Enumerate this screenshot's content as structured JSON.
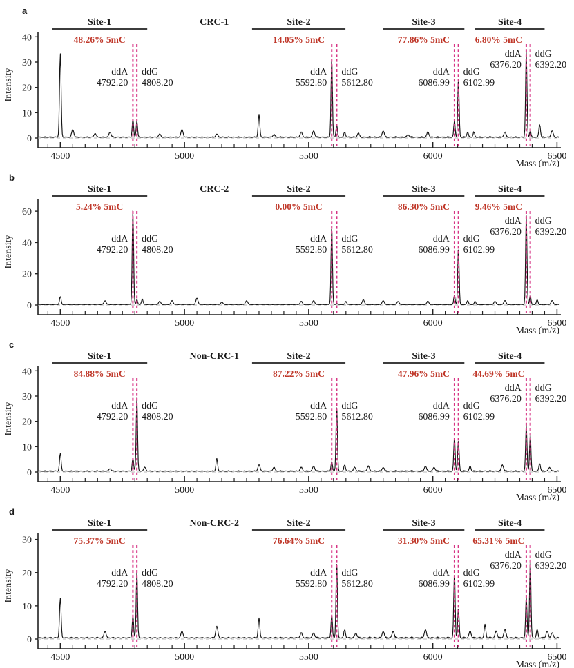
{
  "figure": {
    "xlabel": "Mass (m/z)",
    "ylabel": "Intensity",
    "colors": {
      "background": "#ffffff",
      "trace": "#141414",
      "axis": "#222222",
      "site_bar": "#3c3c3c",
      "percent_red": "#c0392b",
      "marker_pink": "#d63384",
      "baseline_dash": "#b9b9b9",
      "text": "#1a1a1a"
    }
  },
  "chart_data": [
    {
      "type": "line",
      "panel_letter": "a",
      "title": "CRC-1",
      "title_mass": 5120,
      "xlabel": "Mass (m/z)",
      "ylabel": "Intensity",
      "xlim": [
        4410,
        6510
      ],
      "xticks": [
        4500,
        5000,
        5500,
        6000,
        6500
      ],
      "minor_tick_step": 50,
      "yticks": [
        0,
        10,
        20,
        30,
        40
      ],
      "ymax": 42,
      "sites": [
        {
          "name": "Site-1",
          "percent": "48.26% 5mC",
          "bar": [
            4466,
            4850
          ],
          "pct_mass": 4658,
          "label_row": "low",
          "ddA": {
            "label": "ddA",
            "mass_label": "4792.20",
            "mass": 4792.2,
            "height": 7.0
          },
          "ddG": {
            "label": "ddG",
            "mass_label": "4808.20",
            "mass": 4808.2,
            "height": 6.5
          }
        },
        {
          "name": "Site-2",
          "percent": "14.05% 5mC",
          "bar": [
            5272,
            5648
          ],
          "pct_mass": 5460,
          "label_row": "low",
          "ddA": {
            "label": "ddA",
            "mass_label": "5592.80",
            "mass": 5592.8,
            "height": 31.0
          },
          "ddG": {
            "label": "ddG",
            "mass_label": "5612.80",
            "mass": 5612.8,
            "height": 5.0
          }
        },
        {
          "name": "Site-3",
          "percent": "77.86% 5mC",
          "bar": [
            5800,
            6127
          ],
          "pct_mass": 5963,
          "label_row": "low",
          "ddA": {
            "label": "ddA",
            "mass_label": "6086.99",
            "mass": 6086.99,
            "height": 6.5
          },
          "ddG": {
            "label": "ddG",
            "mass_label": "6102.99",
            "mass": 6102.99,
            "height": 23.0
          }
        },
        {
          "name": "Site-4",
          "percent": "6.80% 5mC",
          "bar": [
            6170,
            6450
          ],
          "pct_mass": 6265,
          "label_row": "high",
          "ddA": {
            "label": "ddA",
            "mass_label": "6376.20",
            "mass": 6376.2,
            "height": 34.0
          },
          "ddG": {
            "label": "ddG",
            "mass_label": "6392.20",
            "mass": 6392.2,
            "height": 2.5
          }
        }
      ],
      "noise_peaks": [
        [
          4500,
          33,
          4.5
        ],
        [
          4550,
          3
        ],
        [
          4640,
          1.5
        ],
        [
          4700,
          2
        ],
        [
          4900,
          1.2
        ],
        [
          4990,
          3
        ],
        [
          5130,
          1.2
        ],
        [
          5300,
          9,
          4.5
        ],
        [
          5360,
          1
        ],
        [
          5470,
          2
        ],
        [
          5520,
          2.5
        ],
        [
          5645,
          2,
          4.5
        ],
        [
          5700,
          1.5
        ],
        [
          5800,
          2.5
        ],
        [
          5900,
          1
        ],
        [
          5980,
          2
        ],
        [
          6140,
          2,
          4.5
        ],
        [
          6165,
          2,
          4.5
        ],
        [
          6290,
          2
        ],
        [
          6430,
          5,
          4.5
        ],
        [
          6480,
          2.5
        ]
      ]
    },
    {
      "type": "line",
      "panel_letter": "b",
      "title": "CRC-2",
      "title_mass": 5120,
      "xlabel": "Mass (m/z)",
      "ylabel": "Intensity",
      "xlim": [
        4410,
        6510
      ],
      "xticks": [
        4500,
        5000,
        5500,
        6000,
        6500
      ],
      "minor_tick_step": 50,
      "yticks": [
        0,
        20,
        40,
        60
      ],
      "ymax": 68,
      "sites": [
        {
          "name": "Site-1",
          "percent": "5.24% 5mC",
          "bar": [
            4466,
            4850
          ],
          "pct_mass": 4658,
          "label_row": "low",
          "ddA": {
            "label": "ddA",
            "mass_label": "4792.20",
            "mass": 4792.2,
            "height": 60.0
          },
          "ddG": {
            "label": "ddG",
            "mass_label": "4808.20",
            "mass": 4808.2,
            "height": 3.3
          }
        },
        {
          "name": "Site-2",
          "percent": "0.00% 5mC",
          "bar": [
            5272,
            5648
          ],
          "pct_mass": 5460,
          "label_row": "low",
          "ddA": {
            "label": "ddA",
            "mass_label": "5592.80",
            "mass": 5592.8,
            "height": 50.0
          },
          "ddG": {
            "label": "ddG",
            "mass_label": "5612.80",
            "mass": 5612.8,
            "height": 0.6
          }
        },
        {
          "name": "Site-3",
          "percent": "86.30% 5mC",
          "bar": [
            5800,
            6127
          ],
          "pct_mass": 5963,
          "label_row": "low",
          "ddA": {
            "label": "ddA",
            "mass_label": "6086.99",
            "mass": 6086.99,
            "height": 6.0
          },
          "ddG": {
            "label": "ddG",
            "mass_label": "6102.99",
            "mass": 6102.99,
            "height": 37.0
          }
        },
        {
          "name": "Site-4",
          "percent": "9.46% 5mC",
          "bar": [
            6170,
            6450
          ],
          "pct_mass": 6265,
          "label_row": "high",
          "ddA": {
            "label": "ddA",
            "mass_label": "6376.20",
            "mass": 6376.2,
            "height": 57.0
          },
          "ddG": {
            "label": "ddG",
            "mass_label": "6392.20",
            "mass": 6392.2,
            "height": 6.0
          }
        }
      ],
      "noise_peaks": [
        [
          4500,
          5,
          4.5
        ],
        [
          4680,
          2.5
        ],
        [
          4830,
          3.5,
          4.5
        ],
        [
          4900,
          2
        ],
        [
          4950,
          2.5
        ],
        [
          5050,
          4
        ],
        [
          5150,
          1.5
        ],
        [
          5250,
          2.5
        ],
        [
          5470,
          2
        ],
        [
          5520,
          2.5
        ],
        [
          5650,
          2,
          4.5
        ],
        [
          5720,
          3
        ],
        [
          5800,
          2.5
        ],
        [
          5860,
          2
        ],
        [
          5980,
          2
        ],
        [
          6140,
          2.5,
          4.5
        ],
        [
          6170,
          2,
          4.5
        ],
        [
          6250,
          2
        ],
        [
          6290,
          2.5
        ],
        [
          6420,
          3,
          4.5
        ],
        [
          6480,
          2.5
        ]
      ]
    },
    {
      "type": "line",
      "panel_letter": "c",
      "title": "Non-CRC-1",
      "title_mass": 5120,
      "xlabel": "Mass (m/z)",
      "ylabel": "Intensity",
      "xlim": [
        4410,
        6510
      ],
      "xticks": [
        4500,
        5000,
        5500,
        6000,
        6500
      ],
      "minor_tick_step": 50,
      "yticks": [
        0,
        10,
        20,
        30,
        40
      ],
      "ymax": 42,
      "sites": [
        {
          "name": "Site-1",
          "percent": "84.88% 5mC",
          "bar": [
            4466,
            4850
          ],
          "pct_mass": 4658,
          "label_row": "low",
          "ddA": {
            "label": "ddA",
            "mass_label": "4792.20",
            "mass": 4792.2,
            "height": 5.2
          },
          "ddG": {
            "label": "ddG",
            "mass_label": "4808.20",
            "mass": 4808.2,
            "height": 29.0
          }
        },
        {
          "name": "Site-2",
          "percent": "87.22% 5mC",
          "bar": [
            5272,
            5648
          ],
          "pct_mass": 5460,
          "label_row": "low",
          "ddA": {
            "label": "ddA",
            "mass_label": "5592.80",
            "mass": 5592.8,
            "height": 3.8
          },
          "ddG": {
            "label": "ddG",
            "mass_label": "5612.80",
            "mass": 5612.8,
            "height": 26.0
          }
        },
        {
          "name": "Site-3",
          "percent": "47.96% 5mC",
          "bar": [
            5800,
            6127
          ],
          "pct_mass": 5963,
          "label_row": "low",
          "ddA": {
            "label": "ddA",
            "mass_label": "6086.99",
            "mass": 6086.99,
            "height": 13.5
          },
          "ddG": {
            "label": "ddG",
            "mass_label": "6102.99",
            "mass": 6102.99,
            "height": 12.4
          }
        },
        {
          "name": "Site-4",
          "percent": "44.69% 5mC",
          "bar": [
            6170,
            6450
          ],
          "pct_mass": 6265,
          "label_row": "high",
          "ddA": {
            "label": "ddA",
            "mass_label": "6376.20",
            "mass": 6376.2,
            "height": 18.0
          },
          "ddG": {
            "label": "ddG",
            "mass_label": "6392.20",
            "mass": 6392.2,
            "height": 14.5
          }
        }
      ],
      "noise_peaks": [
        [
          4500,
          7,
          4.5
        ],
        [
          4700,
          1
        ],
        [
          4840,
          1.5
        ],
        [
          5130,
          5,
          4.5
        ],
        [
          5300,
          2.5
        ],
        [
          5360,
          1.5
        ],
        [
          5470,
          1.5
        ],
        [
          5520,
          2
        ],
        [
          5645,
          2.5,
          4.5
        ],
        [
          5685,
          1.5
        ],
        [
          5740,
          2
        ],
        [
          5800,
          1.5
        ],
        [
          5970,
          2
        ],
        [
          6005,
          1.5
        ],
        [
          6150,
          2,
          4.5
        ],
        [
          6280,
          2.5
        ],
        [
          6430,
          3,
          4.5
        ],
        [
          6470,
          1.5
        ]
      ]
    },
    {
      "type": "line",
      "panel_letter": "d",
      "title": "Non-CRC-2",
      "title_mass": 5120,
      "xlabel": "Mass (m/z)",
      "ylabel": "Intensity",
      "xlim": [
        4410,
        6510
      ],
      "xticks": [
        4500,
        5000,
        5500,
        6000,
        6500
      ],
      "minor_tick_step": 50,
      "yticks": [
        0,
        10,
        20,
        30
      ],
      "ymax": 32,
      "sites": [
        {
          "name": "Site-1",
          "percent": "75.37% 5mC",
          "bar": [
            4466,
            4850
          ],
          "pct_mass": 4658,
          "label_row": "low",
          "ddA": {
            "label": "ddA",
            "mass_label": "4792.20",
            "mass": 4792.2,
            "height": 6.6
          },
          "ddG": {
            "label": "ddG",
            "mass_label": "4808.20",
            "mass": 4808.2,
            "height": 20.2
          }
        },
        {
          "name": "Site-2",
          "percent": "76.64% 5mC",
          "bar": [
            5272,
            5648
          ],
          "pct_mass": 5460,
          "label_row": "low",
          "ddA": {
            "label": "ddA",
            "mass_label": "5592.80",
            "mass": 5592.8,
            "height": 7.0
          },
          "ddG": {
            "label": "ddG",
            "mass_label": "5612.80",
            "mass": 5612.8,
            "height": 23.0
          }
        },
        {
          "name": "Site-3",
          "percent": "31.30% 5mC",
          "bar": [
            5800,
            6127
          ],
          "pct_mass": 5963,
          "label_row": "low",
          "ddA": {
            "label": "ddA",
            "mass_label": "6086.99",
            "mass": 6086.99,
            "height": 20.0
          },
          "ddG": {
            "label": "ddG",
            "mass_label": "6102.99",
            "mass": 6102.99,
            "height": 9.1
          }
        },
        {
          "name": "Site-4",
          "percent": "65.31% 5mC",
          "bar": [
            6170,
            6450
          ],
          "pct_mass": 6265,
          "label_row": "high",
          "ddA": {
            "label": "ddA",
            "mass_label": "6376.20",
            "mass": 6376.2,
            "height": 12.6
          },
          "ddG": {
            "label": "ddG",
            "mass_label": "6392.20",
            "mass": 6392.2,
            "height": 23.7
          }
        }
      ],
      "noise_peaks": [
        [
          4500,
          12,
          4.5
        ],
        [
          4680,
          2
        ],
        [
          4990,
          2
        ],
        [
          5130,
          3.5
        ],
        [
          5300,
          6,
          4.5
        ],
        [
          5470,
          1.5
        ],
        [
          5520,
          1.5
        ],
        [
          5645,
          2.5,
          4.5
        ],
        [
          5690,
          1.5
        ],
        [
          5800,
          2
        ],
        [
          5840,
          2
        ],
        [
          5970,
          2.5
        ],
        [
          6150,
          2
        ],
        [
          6210,
          4,
          4.5
        ],
        [
          6255,
          2
        ],
        [
          6290,
          2.5
        ],
        [
          6420,
          2.5,
          4.5
        ],
        [
          6460,
          2
        ],
        [
          6480,
          1.5
        ]
      ]
    }
  ]
}
